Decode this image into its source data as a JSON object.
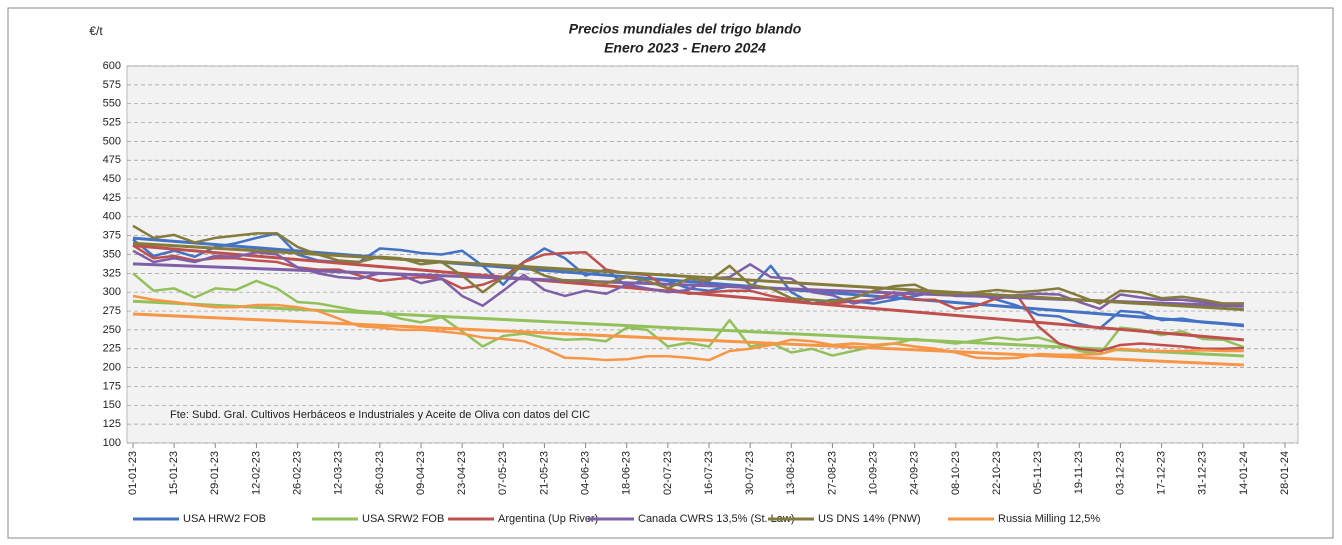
{
  "chart_data": {
    "type": "line",
    "title": "Precios mundiales del trigo blando",
    "subtitle": "Enero 2023 - Enero 2024",
    "y_label": "€/t",
    "annotation": "Fte: Subd. Gral. Cultivos Herbáceos e Industriales y Aceite de Oliva con datos del  CIC",
    "categories": [
      "01-01-23",
      null,
      "15-01-23",
      null,
      "29-01-23",
      null,
      "12-02-23",
      null,
      "26-02-23",
      null,
      "12-03-23",
      null,
      "26-03-23",
      null,
      "09-04-23",
      null,
      "23-04-23",
      null,
      "07-05-23",
      null,
      "21-05-23",
      null,
      "04-06-23",
      null,
      "18-06-23",
      null,
      "02-07-23",
      null,
      "16-07-23",
      null,
      "30-07-23",
      null,
      "13-08-23",
      null,
      "27-08-23",
      null,
      "10-09-23",
      null,
      "24-09-23",
      null,
      "08-10-23",
      null,
      "22-10-23",
      null,
      "05-11-23",
      null,
      "19-11-23",
      null,
      "03-12-23",
      null,
      "17-12-23",
      null,
      "31-12-23",
      null,
      "14-01-24",
      null,
      "28-01-24"
    ],
    "series": [
      {
        "name": "USA HRW2 FOB",
        "color": "#4472c4",
        "values": [
          370,
          348,
          355,
          347,
          360,
          365,
          372,
          378,
          350,
          342,
          340,
          340,
          358,
          356,
          352,
          350,
          355,
          335,
          310,
          340,
          358,
          345,
          322,
          330,
          308,
          318,
          315,
          305,
          302,
          308,
          305,
          335,
          300,
          285,
          290,
          288,
          285,
          290,
          295,
          300,
          300,
          298,
          290,
          282,
          270,
          268,
          258,
          252,
          275,
          273,
          263,
          265,
          260,
          258,
          255,
          null,
          null
        ]
      },
      {
        "name": "USA SRW2 FOB",
        "color": "#92c05a",
        "values": [
          325,
          302,
          305,
          293,
          305,
          303,
          315,
          305,
          287,
          285,
          280,
          275,
          273,
          265,
          260,
          267,
          248,
          228,
          242,
          245,
          240,
          237,
          238,
          235,
          253,
          250,
          228,
          233,
          228,
          263,
          228,
          233,
          220,
          225,
          216,
          222,
          228,
          232,
          238,
          235,
          232,
          236,
          240,
          237,
          240,
          232,
          222,
          218,
          253,
          250,
          243,
          248,
          238,
          237,
          227,
          null,
          null
        ]
      },
      {
        "name": "Argentina (Up River)",
        "color": "#c0504d",
        "values": [
          362,
          345,
          348,
          342,
          345,
          345,
          342,
          340,
          333,
          330,
          330,
          322,
          315,
          318,
          320,
          318,
          305,
          310,
          320,
          340,
          350,
          352,
          353,
          330,
          325,
          323,
          305,
          298,
          300,
          302,
          302,
          295,
          290,
          285,
          285,
          288,
          290,
          300,
          290,
          290,
          278,
          282,
          292,
          295,
          255,
          232,
          225,
          222,
          230,
          232,
          230,
          228,
          225,
          225,
          226,
          null,
          null
        ]
      },
      {
        "name": "Canada CWRS 13,5% (St. Law)",
        "color": "#7f5fa8",
        "values": [
          355,
          340,
          345,
          340,
          348,
          347,
          353,
          350,
          333,
          325,
          320,
          318,
          325,
          323,
          312,
          318,
          295,
          282,
          302,
          323,
          303,
          295,
          302,
          298,
          310,
          305,
          300,
          303,
          318,
          320,
          337,
          320,
          318,
          300,
          296,
          285,
          290,
          295,
          302,
          300,
          295,
          295,
          295,
          296,
          298,
          297,
          287,
          278,
          297,
          293,
          290,
          290,
          287,
          285,
          285,
          null,
          null
        ]
      },
      {
        "name": "US DNS 14% (PNW)",
        "color": "#857b3c",
        "values": [
          388,
          372,
          376,
          366,
          372,
          375,
          378,
          378,
          360,
          350,
          342,
          340,
          347,
          345,
          337,
          340,
          322,
          300,
          320,
          335,
          322,
          315,
          316,
          312,
          320,
          315,
          305,
          318,
          315,
          335,
          310,
          305,
          292,
          290,
          288,
          292,
          302,
          308,
          310,
          298,
          298,
          300,
          303,
          300,
          302,
          305,
          295,
          285,
          302,
          300,
          292,
          294,
          290,
          285,
          285,
          null,
          null
        ]
      },
      {
        "name": "Russia Milling 12,5%",
        "color": "#f79646",
        "values": [
          295,
          290,
          287,
          283,
          280,
          280,
          283,
          283,
          280,
          275,
          265,
          255,
          253,
          250,
          250,
          248,
          245,
          240,
          238,
          235,
          225,
          213,
          212,
          210,
          211,
          215,
          215,
          213,
          210,
          222,
          225,
          230,
          237,
          235,
          230,
          232,
          230,
          232,
          228,
          225,
          220,
          213,
          212,
          213,
          218,
          217,
          217,
          218,
          225,
          223,
          222,
          222,
          223,
          222,
          222,
          null,
          null
        ]
      }
    ],
    "ylim": [
      100,
      600
    ],
    "yticks": [
      100,
      125,
      150,
      175,
      200,
      225,
      250,
      275,
      300,
      325,
      350,
      375,
      400,
      425,
      450,
      475,
      500,
      525,
      550,
      575,
      600
    ],
    "grid": true,
    "trendline": true,
    "legend": "bottom"
  }
}
